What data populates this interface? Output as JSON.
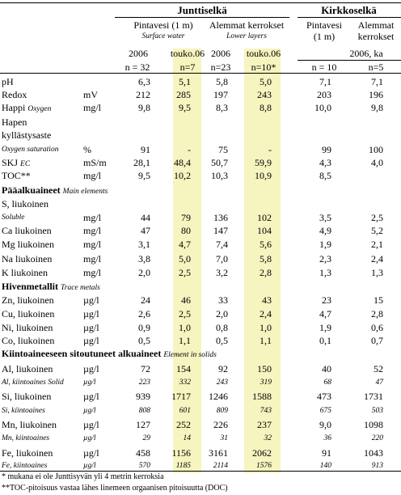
{
  "header": {
    "group_juntti": "Junttiselkä",
    "group_kirkko": "Kirkkoselkä",
    "j_surface": "Pintavesi (1 m)",
    "j_surface_en": "Surface water",
    "j_lower": "Alemmat kerrokset",
    "j_lower_en": "Lower layers",
    "k_surface_1": "Pintavesi",
    "k_surface_2": "(1 m)",
    "k_lower_1": "Alemmat",
    "k_lower_2": "kerrokset",
    "j_y1": "2006",
    "j_y2": "touko.06",
    "j_y3": "2006",
    "j_y4": "touko.06",
    "k_year": "2006, ka",
    "n1": "n = 32",
    "n2": "n=7",
    "n3": "n=23",
    "n4": "n=10*",
    "n5": "n = 10",
    "n6": "n=5"
  },
  "rows": [
    {
      "label": "pH",
      "unit": "",
      "v": [
        "6,3",
        "5,1",
        "5,8",
        "5,0",
        "7,1",
        "7,1"
      ]
    },
    {
      "label": "Redox",
      "unit": "mV",
      "v": [
        "212",
        "285",
        "197",
        "243",
        "203",
        "196"
      ]
    },
    {
      "label": "Happi",
      "label_en": "Oxygen",
      "unit": "mg/l",
      "v": [
        "9,8",
        "9,5",
        "8,3",
        "8,8",
        "10,0",
        "9,8"
      ]
    },
    {
      "label": "Hapen",
      "unit": "",
      "v": [
        "",
        "",
        "",
        "",
        "",
        ""
      ]
    },
    {
      "label": "kyllästysaste",
      "unit": "",
      "v": [
        "",
        "",
        "",
        "",
        "",
        ""
      ]
    },
    {
      "label": "Oxygen saturation",
      "unit": "%",
      "v": [
        "91",
        "-",
        "75",
        "-",
        "99",
        "100"
      ],
      "italic_label": true
    },
    {
      "label": "SKJ",
      "label_en": "EC",
      "unit": "mS/m",
      "v": [
        "28,1",
        "48,4",
        "50,7",
        "59,9",
        "4,3",
        "4,0"
      ]
    },
    {
      "label": "TOC**",
      "unit": "mg/l",
      "v": [
        "9,5",
        "10,2",
        "10,3",
        "10,9",
        "8,5",
        ""
      ]
    },
    {
      "section": "Pääalkuaineet",
      "note": "Main elements"
    },
    {
      "label": "S, liukoinen",
      "unit": "",
      "v": [
        "",
        "",
        "",
        "",
        "",
        ""
      ]
    },
    {
      "label": "Soluble",
      "unit": "mg/l",
      "v": [
        "44",
        "79",
        "136",
        "102",
        "3,5",
        "2,5"
      ],
      "italic_label": true
    },
    {
      "label": "Ca liukoinen",
      "unit": "mg/l",
      "v": [
        "47",
        "80",
        "147",
        "104",
        "4,9",
        "5,2"
      ]
    },
    {
      "label": "Mg liukoinen",
      "unit": "mg/l",
      "v": [
        "3,1",
        "4,7",
        "7,4",
        "5,6",
        "1,9",
        "2,1"
      ]
    },
    {
      "label": "Na liukoinen",
      "unit": "mg/l",
      "v": [
        "3,8",
        "5,0",
        "7,0",
        "5,8",
        "2,3",
        "2,4"
      ]
    },
    {
      "label": "K liukoinen",
      "unit": "mg/l",
      "v": [
        "2,0",
        "2,5",
        "3,2",
        "2,8",
        "1,3",
        "1,3"
      ]
    },
    {
      "section": "Hivenmetallit",
      "note": "Trace metals"
    },
    {
      "label": "Zn, liukoinen",
      "unit": "µg/l",
      "v": [
        "24",
        "46",
        "33",
        "43",
        "23",
        "15"
      ]
    },
    {
      "label": "Cu, liukoinen",
      "unit": "µg/l",
      "v": [
        "2,6",
        "2,5",
        "2,0",
        "2,4",
        "4,7",
        "2,8"
      ]
    },
    {
      "label": "Ni, liukoinen",
      "unit": "µg/l",
      "v": [
        "0,9",
        "1,0",
        "0,8",
        "1,0",
        "1,9",
        "0,6"
      ]
    },
    {
      "label": "Co, liukoinen",
      "unit": "µg/l",
      "v": [
        "0,5",
        "1,1",
        "0,5",
        "1,1",
        "0,1",
        "0,7"
      ]
    },
    {
      "section": "Kiintoaineeseen sitoutuneet alkuaineet",
      "note": "Element in solids"
    },
    {
      "label": "Al, liukoinen",
      "unit": "µg/l",
      "v": [
        "72",
        "154",
        "92",
        "150",
        "40",
        "52"
      ]
    },
    {
      "label": "Al, kiintoaines Solid",
      "unit": "µg/l",
      "v": [
        "223",
        "332",
        "243",
        "319",
        "68",
        "47"
      ],
      "italic": true
    },
    {
      "label": "Si, liukoinen",
      "unit": "µg/l",
      "v": [
        "939",
        "1717",
        "1246",
        "1588",
        "473",
        "1731"
      ]
    },
    {
      "label": "Si, kiintoaines",
      "unit": "µg/l",
      "v": [
        "808",
        "601",
        "809",
        "743",
        "675",
        "503"
      ],
      "italic": true
    },
    {
      "label": "Mn, liukoinen",
      "unit": "µg/l",
      "v": [
        "127",
        "252",
        "226",
        "237",
        "9,0",
        "1098"
      ]
    },
    {
      "label": "Mn, kiintoaines",
      "unit": "µg/l",
      "v": [
        "29",
        "14",
        "31",
        "32",
        "36",
        "220"
      ],
      "italic": true
    },
    {
      "label": "Fe, liukoinen",
      "unit": "µg/l",
      "v": [
        "458",
        "1156",
        "3161",
        "2062",
        "91",
        "1043"
      ]
    },
    {
      "label": "Fe, kiintoaines",
      "unit": "µg/l",
      "v": [
        "570",
        "1185",
        "2114",
        "1576",
        "140",
        "913"
      ],
      "italic": true
    }
  ],
  "footnotes": [
    "* mukana ei ole Junttisyvän yli 4 metrin kerroksia",
    "**TOC-pitoisuus vastaa lähes linemeen orgaanisen pitoisuutta (DOC)"
  ]
}
